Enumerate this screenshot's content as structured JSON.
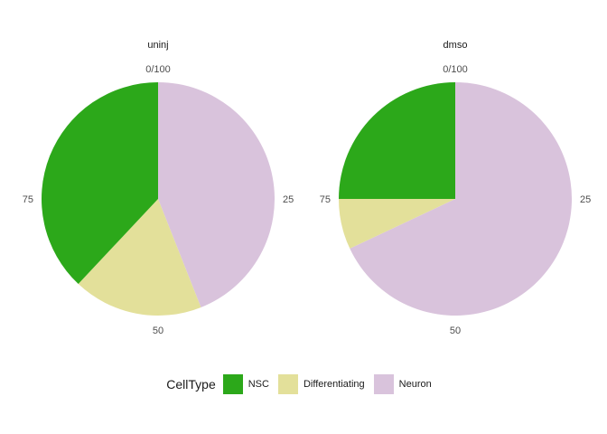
{
  "chart_data": {
    "type": "pie",
    "legend": {
      "title": "CellType",
      "position": "bottom"
    },
    "categories": [
      "NSC",
      "Differentiating",
      "Neuron"
    ],
    "colors": {
      "NSC": "#2ca81a",
      "Differentiating": "#e3e09a",
      "Neuron": "#d9c3dc"
    },
    "tick_labels": [
      "0/100",
      "25",
      "50",
      "75"
    ],
    "facets": [
      {
        "title": "uninj",
        "values": {
          "Neuron": 44,
          "Differentiating": 18,
          "NSC": 38
        }
      },
      {
        "title": "dmso",
        "values": {
          "Neuron": 68,
          "Differentiating": 7,
          "NSC": 25
        }
      }
    ]
  }
}
